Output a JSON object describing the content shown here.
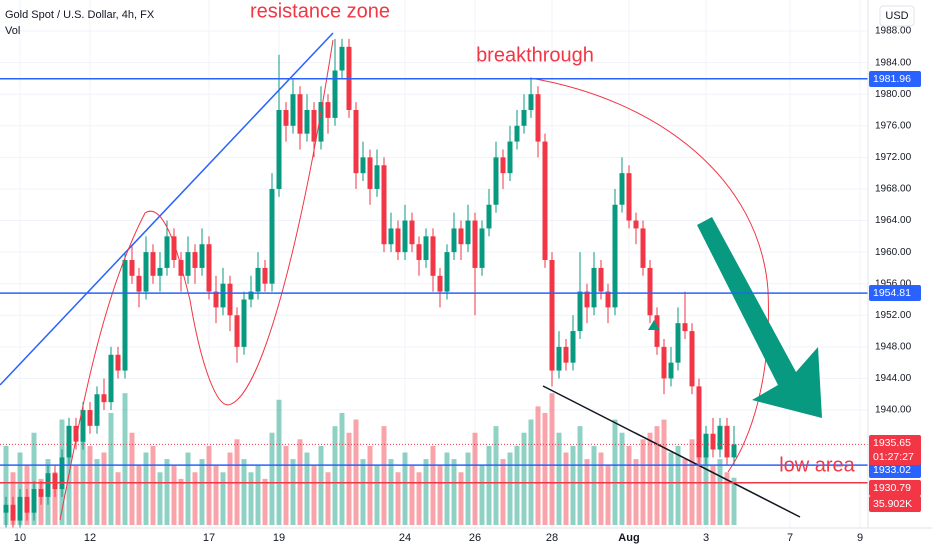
{
  "chart_data": {
    "type": "candlestick",
    "title": "Gold Spot / U.S. Dollar, 4h, FX",
    "volume_title": "Vol",
    "currency": "USD",
    "annotations": [
      "resistance zone",
      "breakthrough",
      "low area"
    ],
    "countdown": "01:27:27",
    "volume_label": "35.902K",
    "up_color": "#089981",
    "down_color": "#f23645",
    "categories": [
      null,
      null,
      "10",
      null,
      null,
      null,
      null,
      null,
      null,
      null,
      null,
      null,
      "12",
      null,
      null,
      null,
      null,
      null,
      null,
      null,
      null,
      null,
      null,
      null,
      null,
      null,
      null,
      null,
      null,
      "17",
      null,
      null,
      null,
      null,
      null,
      null,
      null,
      null,
      null,
      "19",
      null,
      null,
      null,
      null,
      null,
      null,
      null,
      null,
      null,
      null,
      null,
      null,
      null,
      null,
      null,
      null,
      null,
      "24",
      null,
      null,
      null,
      null,
      null,
      null,
      null,
      null,
      null,
      "26",
      null,
      null,
      null,
      null,
      null,
      null,
      null,
      null,
      null,
      null,
      "28",
      null,
      null,
      null,
      null,
      null,
      null,
      null,
      null,
      null,
      null,
      "Aug",
      null,
      null,
      null,
      null,
      null,
      null,
      null,
      null,
      null,
      null,
      "3",
      null,
      null,
      null,
      null,
      null,
      null,
      null,
      null,
      null,
      null,
      null,
      "7",
      null,
      null,
      null,
      null,
      null,
      null,
      null,
      null,
      null,
      "9"
    ],
    "ohlc": [
      [
        1927,
        1929,
        1925,
        1928
      ],
      [
        1928,
        1929,
        1925,
        1926
      ],
      [
        1926,
        1930,
        1925,
        1929
      ],
      [
        1929,
        1930,
        1926,
        1927
      ],
      [
        1927,
        1931,
        1926,
        1930
      ],
      [
        1930,
        1931,
        1928,
        1929
      ],
      [
        1929,
        1933,
        1928,
        1932
      ],
      [
        1932,
        1933,
        1929,
        1930
      ],
      [
        1930,
        1935,
        1929,
        1934
      ],
      [
        1934,
        1939,
        1933,
        1938
      ],
      [
        1938,
        1939,
        1935,
        1936
      ],
      [
        1936,
        1941,
        1935,
        1940
      ],
      [
        1940,
        1941,
        1937,
        1938
      ],
      [
        1938,
        1943,
        1937,
        1942
      ],
      [
        1942,
        1944,
        1940,
        1941
      ],
      [
        1941,
        1948,
        1940,
        1947
      ],
      [
        1947,
        1948,
        1944,
        1945
      ],
      [
        1945,
        1960,
        1944,
        1959
      ],
      [
        1959,
        1961,
        1956,
        1957
      ],
      [
        1957,
        1958,
        1953,
        1955
      ],
      [
        1955,
        1962,
        1954,
        1960
      ],
      [
        1960,
        1961,
        1956,
        1957
      ],
      [
        1957,
        1960,
        1955,
        1958
      ],
      [
        1958,
        1964,
        1957,
        1962
      ],
      [
        1962,
        1963,
        1958,
        1959
      ],
      [
        1959,
        1960,
        1955,
        1957
      ],
      [
        1957,
        1962,
        1956,
        1960
      ],
      [
        1960,
        1961,
        1956,
        1958
      ],
      [
        1958,
        1963,
        1957,
        1961
      ],
      [
        1961,
        1962,
        1954,
        1955
      ],
      [
        1955,
        1957,
        1951,
        1953
      ],
      [
        1953,
        1958,
        1952,
        1956
      ],
      [
        1956,
        1957,
        1950,
        1952
      ],
      [
        1952,
        1953,
        1946,
        1948
      ],
      [
        1948,
        1955,
        1947,
        1954
      ],
      [
        1954,
        1957,
        1953,
        1955
      ],
      [
        1955,
        1960,
        1954,
        1958
      ],
      [
        1958,
        1959,
        1955,
        1956
      ],
      [
        1956,
        1970,
        1955,
        1968
      ],
      [
        1968,
        1985,
        1967,
        1978
      ],
      [
        1978,
        1979,
        1974,
        1976
      ],
      [
        1976,
        1982,
        1975,
        1980
      ],
      [
        1980,
        1981,
        1973,
        1975
      ],
      [
        1975,
        1980,
        1974,
        1978
      ],
      [
        1978,
        1979,
        1972,
        1974
      ],
      [
        1974,
        1981,
        1973,
        1979
      ],
      [
        1979,
        1980,
        1975,
        1977
      ],
      [
        1977,
        1987,
        1976,
        1983
      ],
      [
        1983,
        1987,
        1982,
        1986
      ],
      [
        1986,
        1987,
        1977,
        1978
      ],
      [
        1978,
        1979,
        1968,
        1970
      ],
      [
        1970,
        1974,
        1969,
        1972
      ],
      [
        1972,
        1973,
        1966,
        1968
      ],
      [
        1968,
        1973,
        1967,
        1971
      ],
      [
        1971,
        1972,
        1960,
        1961
      ],
      [
        1961,
        1965,
        1960,
        1963
      ],
      [
        1963,
        1964,
        1959,
        1960
      ],
      [
        1960,
        1966,
        1959,
        1964
      ],
      [
        1964,
        1965,
        1960,
        1961
      ],
      [
        1961,
        1962,
        1957,
        1959
      ],
      [
        1959,
        1963,
        1958,
        1962
      ],
      [
        1962,
        1963,
        1955,
        1957
      ],
      [
        1957,
        1958,
        1953,
        1955
      ],
      [
        1955,
        1961,
        1954,
        1960
      ],
      [
        1960,
        1965,
        1959,
        1963
      ],
      [
        1963,
        1964,
        1959,
        1961
      ],
      [
        1961,
        1966,
        1960,
        1964
      ],
      [
        1964,
        1965,
        1952,
        1958
      ],
      [
        1958,
        1964,
        1957,
        1963
      ],
      [
        1963,
        1968,
        1962,
        1966
      ],
      [
        1966,
        1974,
        1965,
        1972
      ],
      [
        1972,
        1973,
        1968,
        1970
      ],
      [
        1970,
        1976,
        1969,
        1974
      ],
      [
        1974,
        1978,
        1973,
        1976
      ],
      [
        1976,
        1980,
        1975,
        1978
      ],
      [
        1978,
        1982,
        1977,
        1980
      ],
      [
        1980,
        1981,
        1972,
        1974
      ],
      [
        1974,
        1975,
        1958,
        1959
      ],
      [
        1959,
        1960,
        1943,
        1945
      ],
      [
        1945,
        1950,
        1944,
        1948
      ],
      [
        1948,
        1949,
        1945,
        1946
      ],
      [
        1946,
        1952,
        1945,
        1950
      ],
      [
        1950,
        1960,
        1949,
        1955
      ],
      [
        1955,
        1956,
        1951,
        1953
      ],
      [
        1953,
        1960,
        1952,
        1958
      ],
      [
        1958,
        1959,
        1954,
        1955
      ],
      [
        1955,
        1956,
        1951,
        1953
      ],
      [
        1953,
        1968,
        1952,
        1966
      ],
      [
        1966,
        1972,
        1965,
        1970
      ],
      [
        1970,
        1971,
        1963,
        1964
      ],
      [
        1964,
        1965,
        1961,
        1963
      ],
      [
        1963,
        1964,
        1957,
        1958
      ],
      [
        1958,
        1959,
        1951,
        1952
      ],
      [
        1952,
        1953,
        1947,
        1948
      ],
      [
        1948,
        1949,
        1942,
        1944
      ],
      [
        1944,
        1948,
        1943,
        1946
      ],
      [
        1946,
        1953,
        1945,
        1951
      ],
      [
        1951,
        1955,
        1949,
        1950
      ],
      [
        1950,
        1951,
        1942,
        1943
      ],
      [
        1943,
        1944,
        1933,
        1934
      ],
      [
        1934,
        1938,
        1933,
        1937
      ],
      [
        1937,
        1939,
        1934,
        1935
      ],
      [
        1935,
        1939,
        1934,
        1938
      ],
      [
        1938,
        1939,
        1933,
        1934
      ],
      [
        1934,
        1938,
        1933,
        1935.65
      ],
      null,
      null,
      null,
      null,
      null,
      null,
      null,
      null,
      null,
      null,
      null,
      null,
      null,
      null,
      null,
      null,
      null,
      null
    ],
    "volume": [
      60,
      40,
      55,
      45,
      70,
      35,
      50,
      40,
      80,
      65,
      45,
      75,
      60,
      50,
      55,
      85,
      40,
      100,
      70,
      45,
      55,
      60,
      40,
      50,
      45,
      35,
      55,
      40,
      50,
      60,
      45,
      40,
      55,
      65,
      50,
      40,
      45,
      35,
      70,
      95,
      60,
      50,
      65,
      55,
      45,
      60,
      40,
      75,
      85,
      70,
      80,
      50,
      60,
      45,
      75,
      50,
      40,
      55,
      45,
      40,
      50,
      60,
      45,
      55,
      50,
      40,
      55,
      70,
      45,
      60,
      75,
      50,
      55,
      60,
      70,
      80,
      90,
      85,
      100,
      70,
      55,
      60,
      75,
      50,
      60,
      55,
      45,
      80,
      70,
      60,
      50,
      65,
      70,
      75,
      80,
      55,
      60,
      50,
      65,
      85,
      60,
      45,
      50,
      40,
      35.902,
      null,
      null,
      null,
      null,
      null,
      null,
      null,
      null,
      null,
      null,
      null,
      null,
      null,
      null,
      null,
      null,
      null,
      null
    ],
    "volume_ylim": [
      0,
      110
    ],
    "ylim": [
      1925.44,
      1991.93
    ],
    "yticks": [
      {
        "value": 1940,
        "label": "1940.00"
      },
      {
        "value": 1944,
        "label": "1944.00"
      },
      {
        "value": 1948,
        "label": "1948.00"
      },
      {
        "value": 1952,
        "label": "1952.00"
      },
      {
        "value": 1956,
        "label": "1956.00"
      },
      {
        "value": 1960,
        "label": "1960.00"
      },
      {
        "value": 1964,
        "label": "1964.00"
      },
      {
        "value": 1968,
        "label": "1968.00"
      },
      {
        "value": 1972,
        "label": "1972.00"
      },
      {
        "value": 1976,
        "label": "1976.00"
      },
      {
        "value": 1980,
        "label": "1980.00"
      },
      {
        "value": 1984,
        "label": "1984.00"
      },
      {
        "value": 1988,
        "label": "1988.00"
      }
    ],
    "grid": true,
    "levels": [
      {
        "value": 1981.96,
        "color": "#2962ff"
      },
      {
        "value": 1954.81,
        "color": "#2962ff"
      },
      {
        "value": 1933.02,
        "color": "#2962ff"
      },
      {
        "value": 1930.79,
        "color": "#f23645"
      }
    ],
    "last_price": 1935.65
  }
}
